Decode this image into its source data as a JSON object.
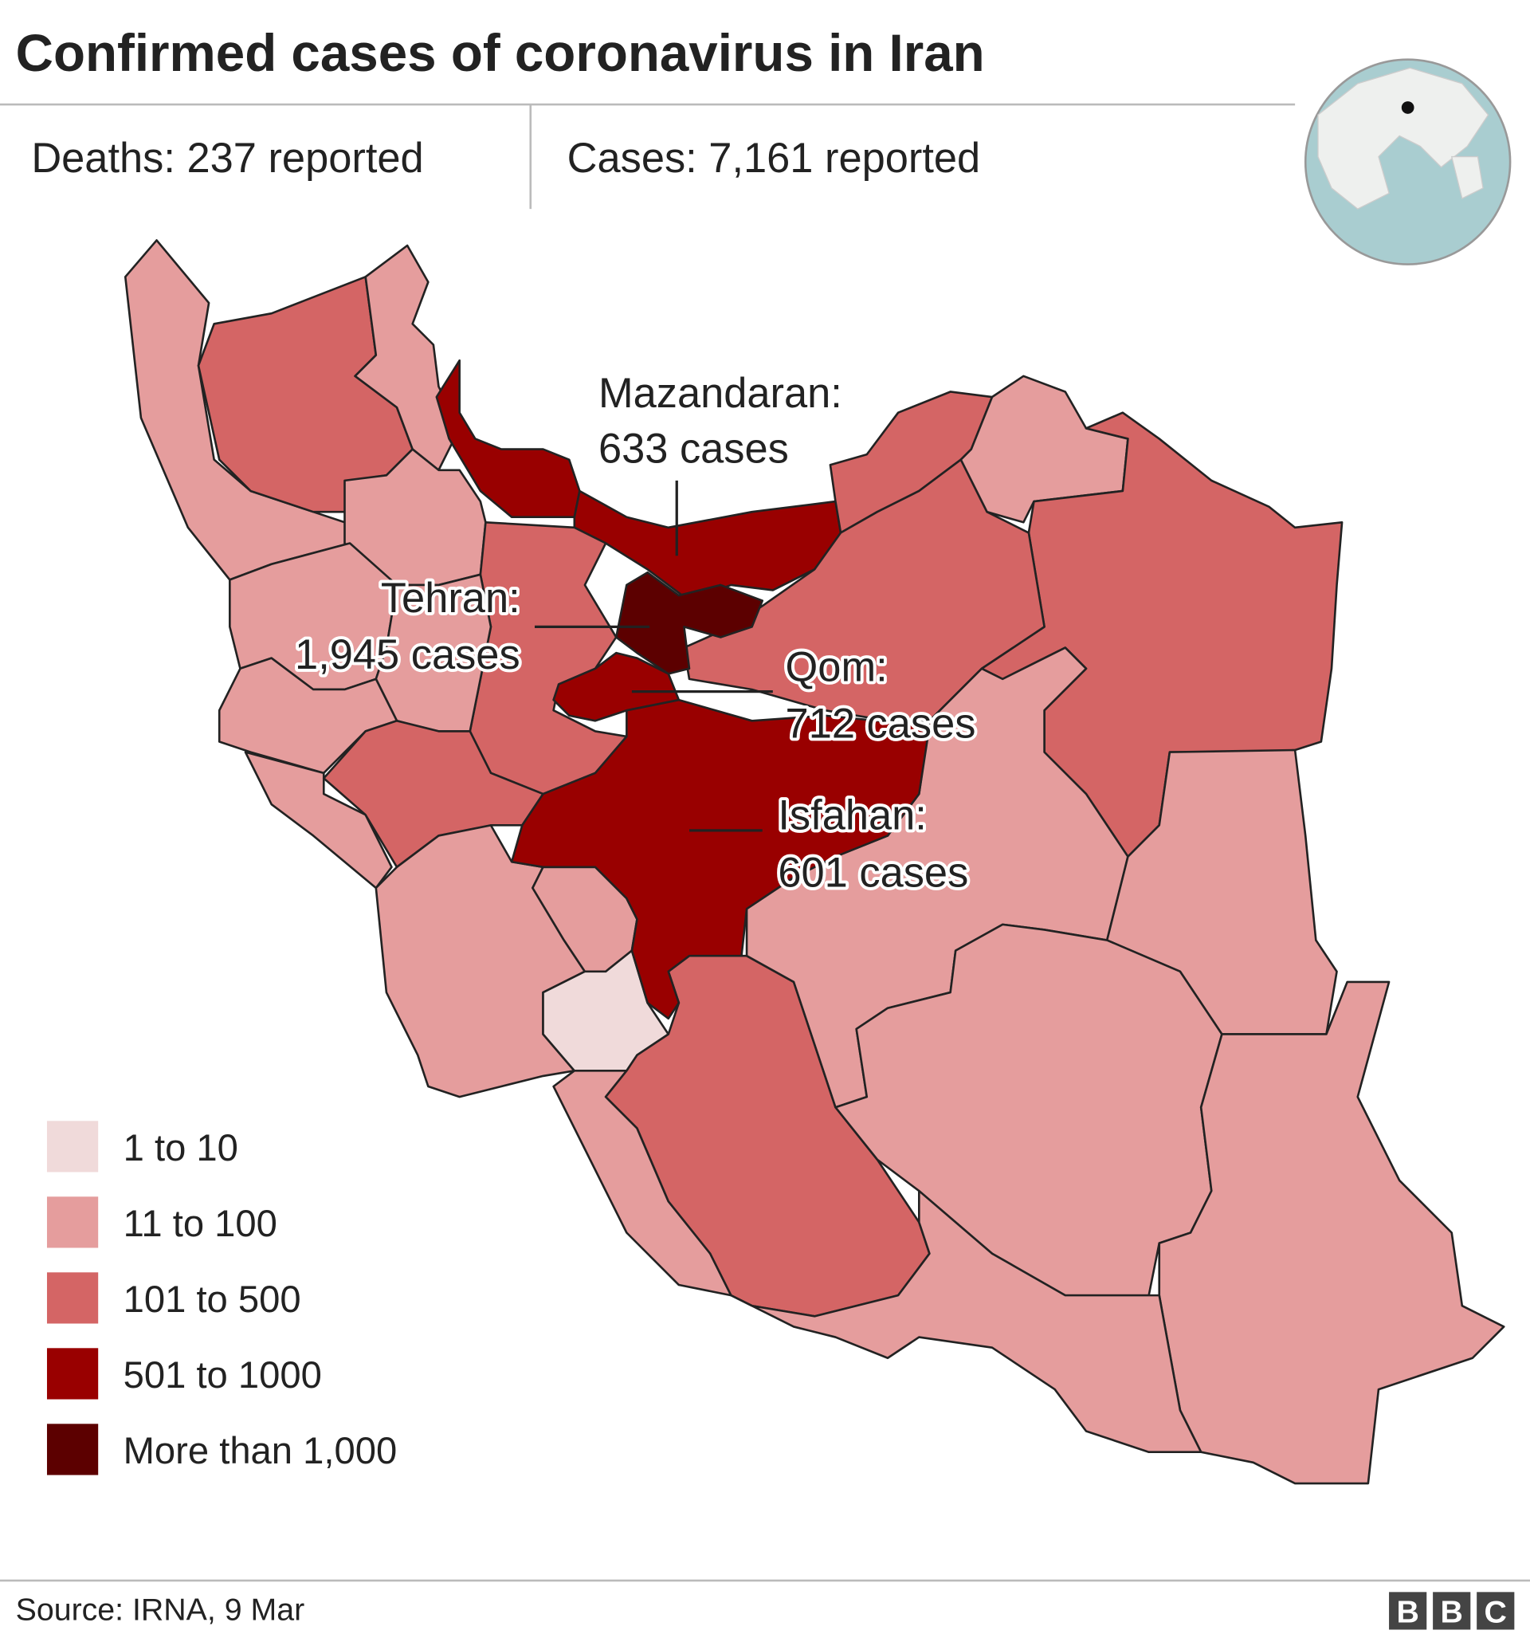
{
  "header": {
    "title": "Confirmed cases of coronavirus in Iran",
    "stats": [
      "Deaths: 237 reported",
      "Cases: 7,161 reported"
    ]
  },
  "legend": [
    {
      "label": "1 to 10",
      "color": "#f0dada"
    },
    {
      "label": "11 to 100",
      "color": "#e59d9d"
    },
    {
      "label": "101 to 500",
      "color": "#d46565"
    },
    {
      "label": "501 to 1000",
      "color": "#990000"
    },
    {
      "label": "More than 1,000",
      "color": "#5c0000"
    }
  ],
  "annotations": [
    {
      "name": "Mazandaran:",
      "text": "633 cases"
    },
    {
      "name": "Tehran:",
      "text": "1,945 cases"
    },
    {
      "name": "Qom:",
      "text": "712 cases"
    },
    {
      "name": "Isfahan:",
      "text": "601 cases"
    }
  ],
  "footer": {
    "source": "Source: IRNA, 9 Mar",
    "logo": [
      "B",
      "B",
      "C"
    ]
  }
}
